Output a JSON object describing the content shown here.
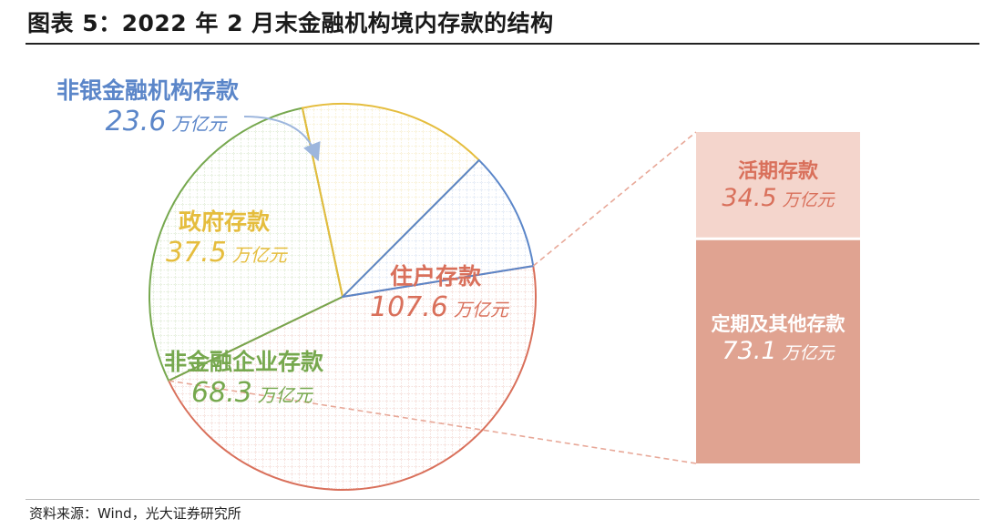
{
  "title": "图表 5：2022 年 2 月末金融机构境内存款的结构",
  "source": "资料来源：Wind，光大证券研究所",
  "unit": "万亿元",
  "chart_data": {
    "type": "pie",
    "slices": [
      {
        "name": "住户存款",
        "value": 107.6,
        "color": "#d9705b"
      },
      {
        "name": "非金融企业存款",
        "value": 68.3,
        "color": "#76a84e"
      },
      {
        "name": "政府存款",
        "value": 37.5,
        "color": "#e5bd3d"
      },
      {
        "name": "非银金融机构存款",
        "value": 23.6,
        "color": "#5b86c9"
      }
    ],
    "breakdown": {
      "of": "住户存款",
      "type": "stacked-bar",
      "segments": [
        {
          "name": "活期存款",
          "value": 34.5,
          "color": "#f4d5cc",
          "text_color": "#d9705b"
        },
        {
          "name": "定期及其他存款",
          "value": 73.1,
          "color": "#e0a391",
          "text_color": "#ffffff"
        }
      ]
    }
  }
}
